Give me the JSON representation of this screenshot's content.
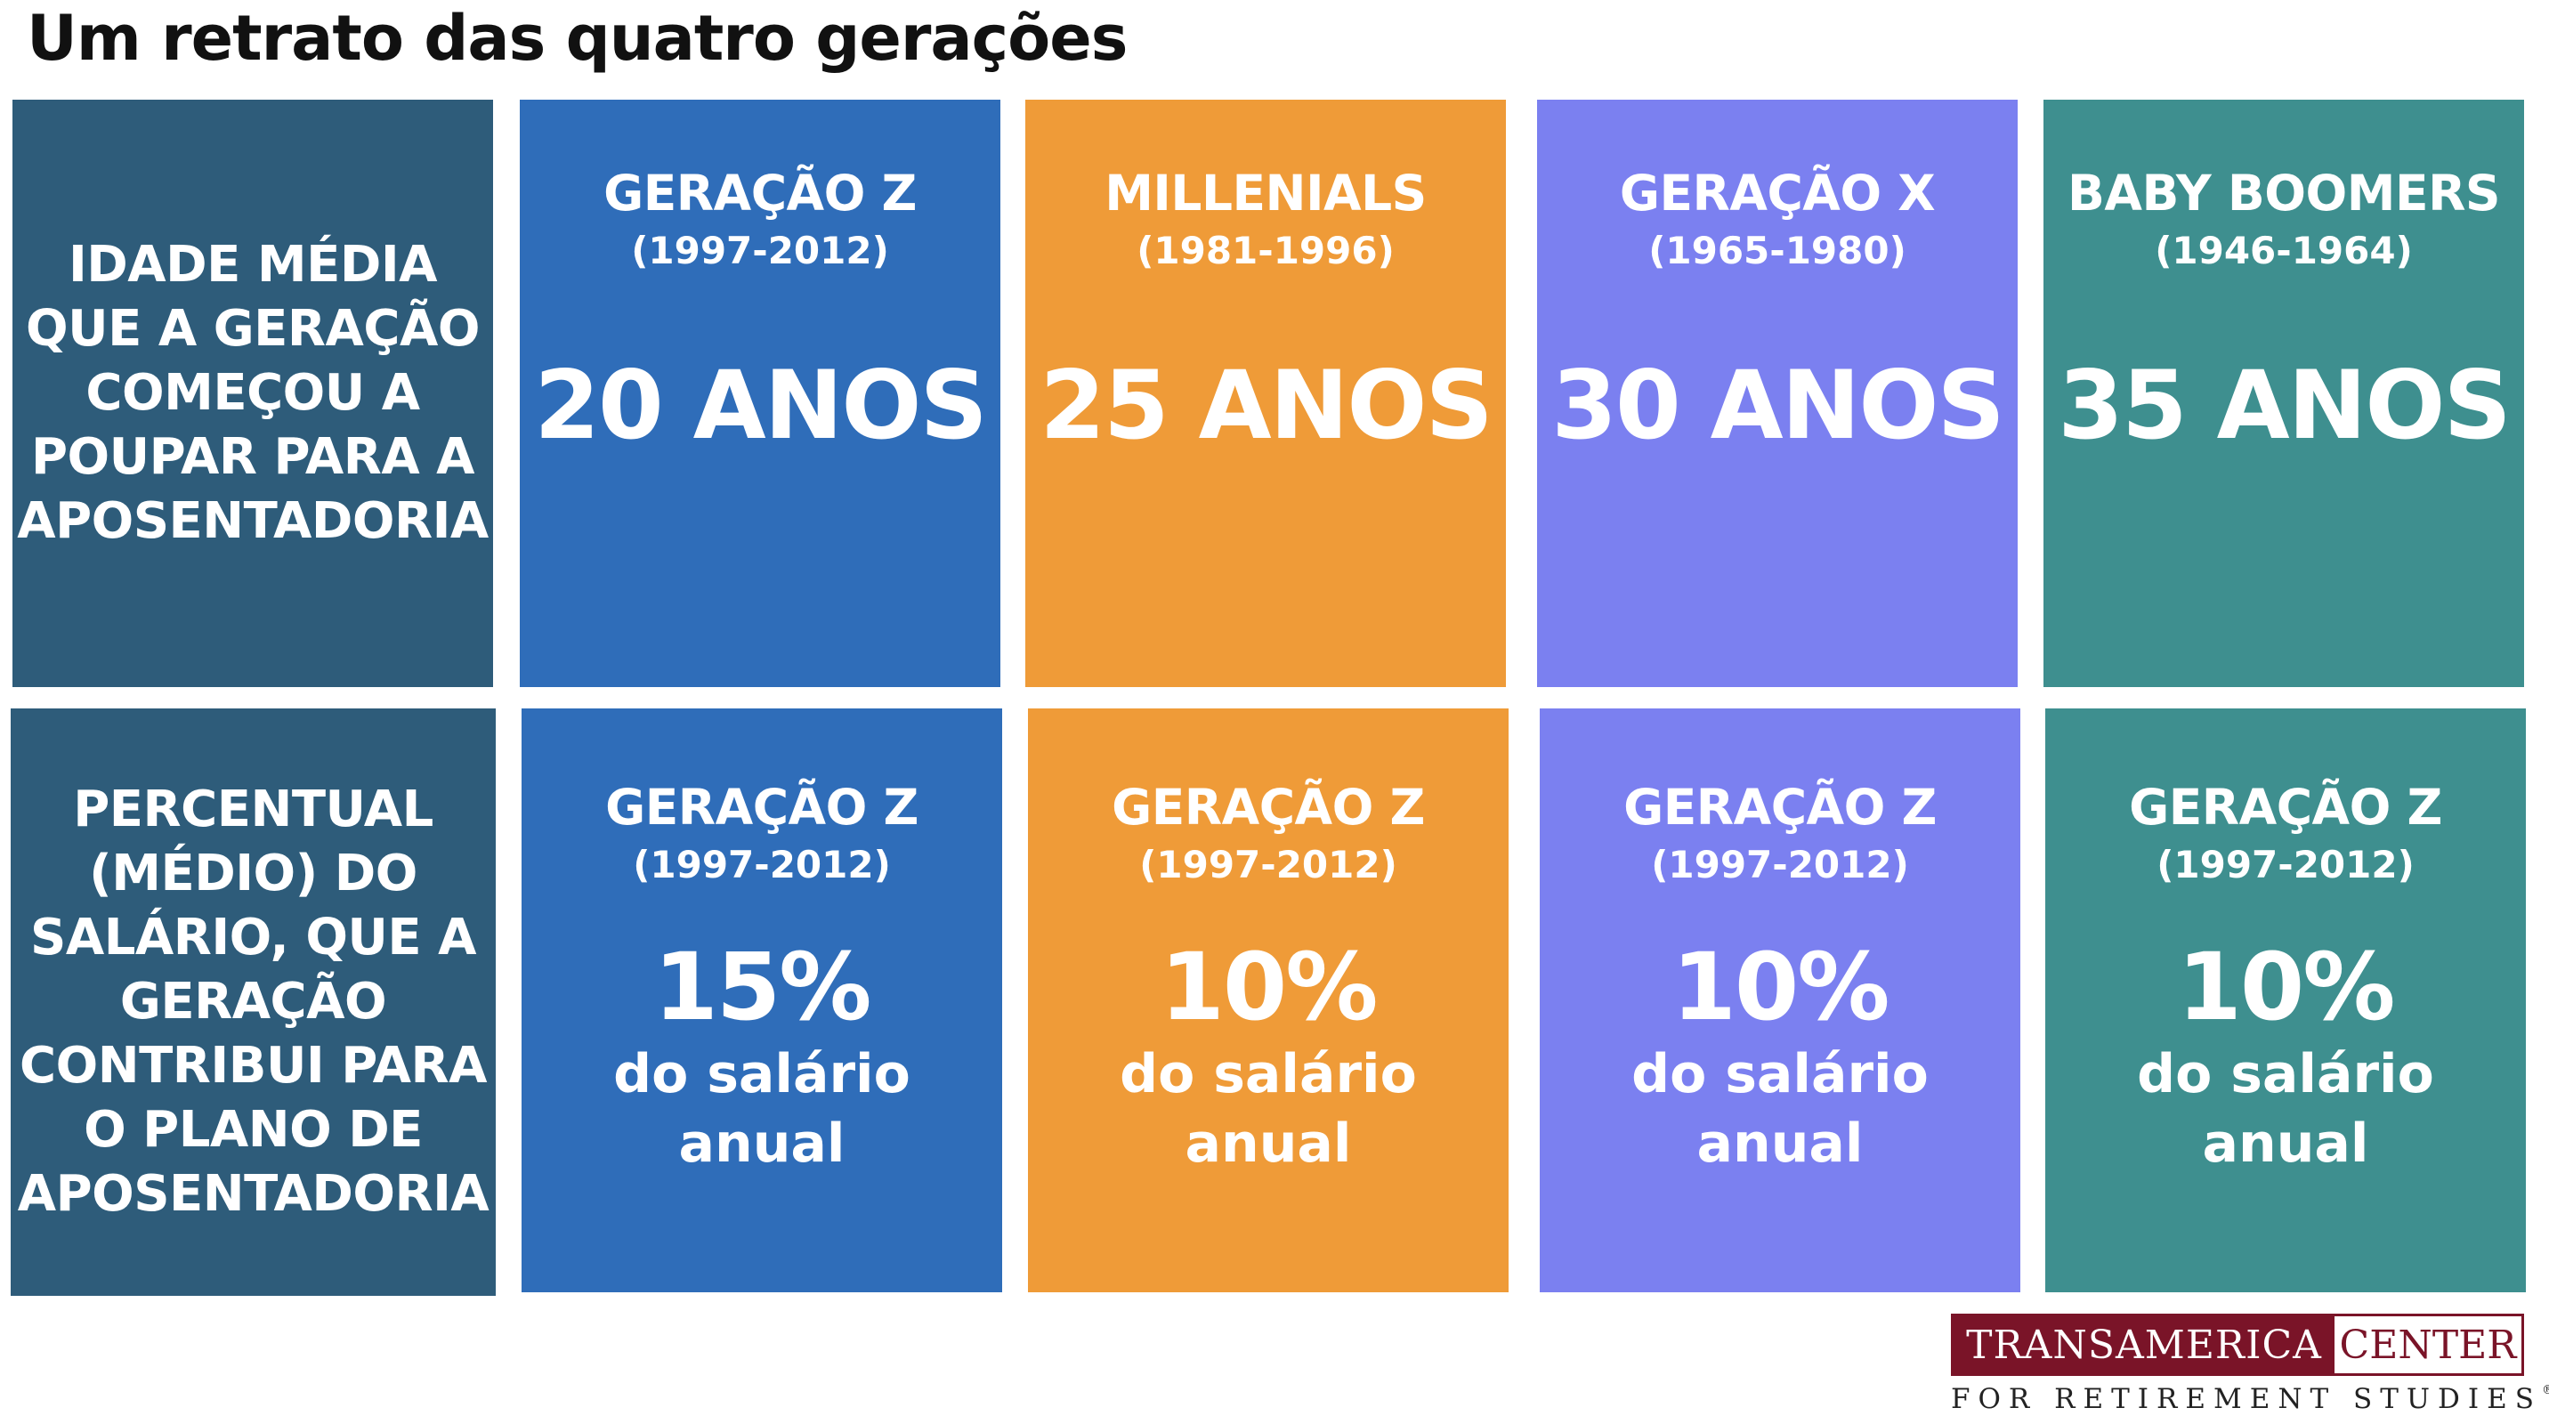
{
  "title": "Um retrato das quatro gerações",
  "colors": {
    "label_tile": "#2e5c7a",
    "gen_z": "#2f6db9",
    "millenials": "#ef9b38",
    "gen_x": "#7b80f0",
    "boomers": "#3e8f8f",
    "logo_red": "#7a1428"
  },
  "row1": {
    "label": "IDADE MÉDIA\nQUE A GERAÇÃO\nCOMEÇOU A\nPOUPAR PARA A\nAPOSENTADORIA",
    "tiles": [
      {
        "name": "GERAÇÃO Z",
        "years": "(1997-2012)",
        "value": "20 ANOS"
      },
      {
        "name": "MILLENIALS",
        "years": "(1981-1996)",
        "value": "25 ANOS"
      },
      {
        "name": "GERAÇÃO X",
        "years": "(1965-1980)",
        "value": "30 ANOS"
      },
      {
        "name": "BABY BOOMERS",
        "years": "(1946-1964)",
        "value": "35 ANOS"
      }
    ]
  },
  "row2": {
    "label": "PERCENTUAL\n(MÉDIO) DO\nSALÁRIO, QUE A\nGERAÇÃO\nCONTRIBUI PARA\nO PLANO DE\nAPOSENTADORIA",
    "tiles": [
      {
        "name": "GERAÇÃO Z",
        "years": "(1997-2012)",
        "value": "15%",
        "desc": "do salário\nanual"
      },
      {
        "name": "GERAÇÃO Z",
        "years": "(1997-2012)",
        "value": "10%",
        "desc": "do salário\nanual"
      },
      {
        "name": "GERAÇÃO Z",
        "years": "(1997-2012)",
        "value": "10%",
        "desc": "do salário\nanual"
      },
      {
        "name": "GERAÇÃO Z",
        "years": "(1997-2012)",
        "value": "10%",
        "desc": "do salário\nanual"
      }
    ]
  },
  "logo": {
    "left": "TRANSAMERICA",
    "right": "CENTER",
    "bottom": "FOR RETIREMENT STUDIES",
    "mark": "®"
  }
}
